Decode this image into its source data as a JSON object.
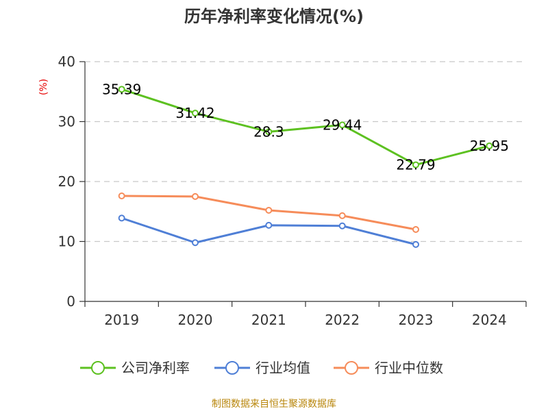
{
  "chart_data": {
    "type": "line",
    "title": "历年净利率变化情况(%)",
    "ylabel": "(%)",
    "xlabel": "",
    "categories": [
      "2019",
      "2020",
      "2021",
      "2022",
      "2023",
      "2024"
    ],
    "ylim": [
      0,
      40
    ],
    "yticks": [
      0,
      10,
      20,
      30,
      40
    ],
    "grid": true,
    "legend_position": "bottom",
    "series": [
      {
        "name": "公司净利率",
        "color": "#5dc121",
        "values": [
          35.39,
          31.42,
          28.3,
          29.44,
          22.79,
          25.95
        ],
        "labels": [
          "35.39",
          "31.42",
          "28.3",
          "29.44",
          "22.79",
          "25.95"
        ],
        "show_labels": true
      },
      {
        "name": "行业均值",
        "color": "#4f7fd6",
        "values": [
          13.9,
          9.8,
          12.7,
          12.6,
          9.5,
          null
        ],
        "show_labels": false
      },
      {
        "name": "行业中位数",
        "color": "#f68c5a",
        "values": [
          17.6,
          17.5,
          15.2,
          14.3,
          12.0,
          null
        ],
        "show_labels": false
      }
    ]
  },
  "source": "制图数据来自恒生聚源数据库"
}
